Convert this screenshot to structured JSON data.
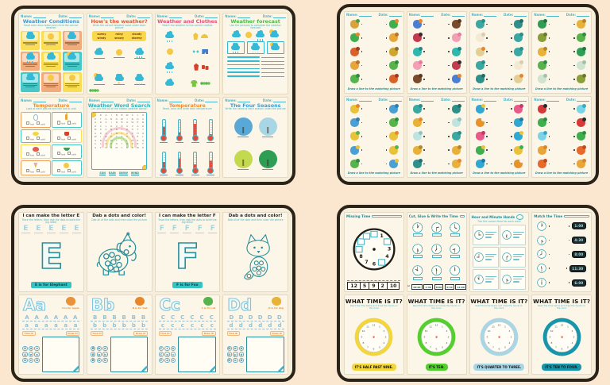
{
  "common": {
    "name_label": "Name:",
    "date_label": "Date:"
  },
  "weather_panel": {
    "conditions": {
      "title": "Weather Conditions",
      "subtitle": "Read each description and circle the correct weather",
      "cards": [
        {
          "bg": "#f9dd55",
          "icon": "cloud"
        },
        {
          "bg": "#f9dd55",
          "icon": "sun"
        },
        {
          "bg": "#f2ab7a",
          "icon": "cloud"
        },
        {
          "bg": "#f2ab7a",
          "icon": "rain"
        },
        {
          "bg": "#f9dd55",
          "icon": "cloud"
        },
        {
          "bg": "#49c8c8",
          "icon": "cloudsun"
        },
        {
          "bg": "#49c8c8",
          "icon": "cloud"
        },
        {
          "bg": "#f2ab7a",
          "icon": "sun"
        },
        {
          "bg": "#f9dd55",
          "icon": "sun"
        }
      ]
    },
    "hows": {
      "title": "How's the weather?",
      "subtitle": "Write the correct weather word under each picture",
      "word_bank": [
        "sunny",
        "rainy",
        "cloudy",
        "windy",
        "snowy",
        "stormy"
      ],
      "icons": [
        "cloud",
        "sun",
        "rain",
        "cloudsun",
        "storm",
        "snow"
      ]
    },
    "clothes": {
      "title": "Weather and Clothes",
      "subtitle": "Match the weather to the correct clothes",
      "weather_icons": [
        "rain",
        "sun",
        "rain",
        "cloud"
      ],
      "clothes_rows": [
        [
          "raincoat",
          "umbrella"
        ],
        [
          "goggles",
          "shorts"
        ],
        [
          "coat",
          "boots"
        ],
        [
          "jacket",
          "caterpillar"
        ]
      ]
    },
    "forecast": {
      "title": "Weather forecast",
      "subtitle": "Use the pictures to complete the weather forecast",
      "icons": [
        "cloud",
        "sun",
        "rain",
        "cloudsun"
      ],
      "box_icons": [
        "rain",
        "snow",
        "cloudsun"
      ],
      "line_count": 6
    },
    "temperature1": {
      "title": "Temperature",
      "subtitle": "Look at each picture and tick hot or cold",
      "options": [
        "hot",
        "cold"
      ],
      "cards": [
        {
          "border": "#f2a25c",
          "icon": "snowman"
        },
        {
          "border": "#49c8c8",
          "icon": "candle"
        },
        {
          "border": "#49c8c8",
          "icon": "lemon"
        },
        {
          "border": "#f9dd55",
          "icon": "mug"
        },
        {
          "border": "#f9dd55",
          "icon": "kettle"
        },
        {
          "border": "#49c8c8",
          "icon": "soup"
        },
        {
          "border": "#f2a25c",
          "icon": "icecream"
        },
        {
          "border": "#49c8c8",
          "icon": "sun"
        }
      ]
    },
    "wordsearch": {
      "title": "Weather Word Search",
      "subtitle": "Can you find all of the hidden weather words?",
      "grid_rows": [
        "SRAINBWCLO",
        "UTSNOWINDS",
        "ORAINBOWEN",
        "RCLOUDUVAD",
        "MSUNNYDHTY",
        "ARAINYOPHO",
        "WINDYSCXEL",
        "SNOWYTLMRQ",
        "CLOUDYOZBF",
        "STORMYUNWE"
      ],
      "words": [
        "SUN",
        "RAIN",
        "SNOW",
        "WIND"
      ]
    },
    "temperature2": {
      "title": "Temperature",
      "subtitle": "Read, color and write each temperature",
      "fills": [
        62,
        30,
        78,
        22,
        48,
        68,
        35,
        55
      ]
    },
    "seasons": {
      "title": "The Four Seasons",
      "subtitle": "Write the name of each season under the picture",
      "season_colors": [
        "#58a8d8",
        "#a9d6e5",
        "#c3d94e",
        "#2f9e55"
      ]
    }
  },
  "matching_panel": {
    "caption": "Draw a line to the matching picture",
    "sheets": [
      {
        "theme": "jungle-animals",
        "left": [
          [
            "#d9a23a",
            "#4f9e3f"
          ],
          [
            "#3fae4e",
            "#e8862a"
          ],
          [
            "#d8622a",
            "#a33a1e"
          ],
          [
            "#e8a53a",
            "#b8762a"
          ],
          [
            "#57b44c",
            "#2f8f3f"
          ]
        ],
        "right": [
          [
            "#3fae4e",
            "#e8862a"
          ],
          [
            "#e8a53a",
            "#b8762a"
          ],
          [
            "#cfa52f",
            "#8a6d3a"
          ],
          [
            "#57b44c",
            "#2f8f3f"
          ],
          [
            "#d8622a",
            "#a33a1e"
          ]
        ]
      },
      {
        "theme": "butterflies",
        "left": [
          [
            "#4a7fd4",
            "#e8862a"
          ],
          [
            "#c43a4e",
            "#3a2a2a"
          ],
          [
            "#2fb6ad",
            "#1f8a86"
          ],
          [
            "#f2a0b5",
            "#e87a9a"
          ],
          [
            "#7a4a2a",
            "#5a3a1e"
          ]
        ],
        "right": [
          [
            "#7a4a2a",
            "#5a3a1e"
          ],
          [
            "#f2a0b5",
            "#e87a9a"
          ],
          [
            "#2fb6ad",
            "#1f8a86"
          ],
          [
            "#c43a4e",
            "#3a2a2a"
          ],
          [
            "#4a7fd4",
            "#e8862a"
          ]
        ]
      },
      {
        "theme": "bunnies",
        "left": [
          [
            "#3aa9a4",
            "#2a8f8a"
          ],
          [
            "#f3ead6",
            "#d8cdb2"
          ],
          [
            "#e3cf96",
            "#e8862a"
          ],
          [
            "#3aa9a4",
            "#2a8f8a"
          ],
          [
            "#2f8f8a",
            "#1f6f6a"
          ]
        ],
        "right": [
          [
            "#2f8f8a",
            "#1f6f6a"
          ],
          [
            "#3aa9a4",
            "#2a8f8a"
          ],
          [
            "#3aa9a4",
            "#2a8f8a"
          ],
          [
            "#f3ead6",
            "#d8cdb2"
          ],
          [
            "#e3cf96",
            "#e8862a"
          ]
        ]
      },
      {
        "theme": "farm-animals",
        "left": [
          [
            "#2f9e55",
            "#1f7a3f"
          ],
          [
            "#8a9e3a",
            "#6a7a2a"
          ],
          [
            "#e8b13a",
            "#b8862a"
          ],
          [
            "#57b44c",
            "#2f8f3f"
          ],
          [
            "#cfe3d0",
            "#9fc4a8"
          ]
        ],
        "right": [
          [
            "#e8b13a",
            "#b8862a"
          ],
          [
            "#57b44c",
            "#2f8f3f"
          ],
          [
            "#2f9e55",
            "#1f7a3f"
          ],
          [
            "#cfe3d0",
            "#9fc4a8"
          ],
          [
            "#8a9e3a",
            "#6a7a2a"
          ]
        ]
      },
      {
        "theme": "birds",
        "left": [
          [
            "#e8c23a",
            "#e8862a"
          ],
          [
            "#4a9fd4",
            "#2a7fb4"
          ],
          [
            "#e8c23a",
            "#57b44c"
          ],
          [
            "#4a9fd4",
            "#e8c23a"
          ],
          [
            "#57b44c",
            "#2f8f3f"
          ]
        ],
        "right": [
          [
            "#4a9fd4",
            "#2a7fb4"
          ],
          [
            "#57b44c",
            "#2f8f3f"
          ],
          [
            "#e8c23a",
            "#e8862a"
          ],
          [
            "#e8c23a",
            "#57b44c"
          ],
          [
            "#4a9fd4",
            "#e8c23a"
          ]
        ]
      },
      {
        "theme": "cats",
        "left": [
          [
            "#3aa9a4",
            "#2a8f8a"
          ],
          [
            "#e8b13a",
            "#e8862a"
          ],
          [
            "#bfe3e0",
            "#8fc4c0"
          ],
          [
            "#e8b13a",
            "#b8862a"
          ],
          [
            "#2f8f8a",
            "#1f6f6a"
          ]
        ],
        "right": [
          [
            "#2f8f8a",
            "#1f6f6a"
          ],
          [
            "#bfe3e0",
            "#8fc4c0"
          ],
          [
            "#3aa9a4",
            "#2a8f8a"
          ],
          [
            "#e8b13a",
            "#b8862a"
          ],
          [
            "#e8b13a",
            "#e8862a"
          ]
        ]
      },
      {
        "theme": "fish",
        "left": [
          [
            "#2fa8d4",
            "#e8c23a"
          ],
          [
            "#e8922a",
            "#fdf6e8"
          ],
          [
            "#e85a8a",
            "#c43a6a"
          ],
          [
            "#3fae4e",
            "#e8c23a"
          ],
          [
            "#2fa8d4",
            "#1f7aa4"
          ]
        ],
        "right": [
          [
            "#e85a8a",
            "#c43a6a"
          ],
          [
            "#2fa8d4",
            "#1f7aa4"
          ],
          [
            "#2fa8d4",
            "#e8c23a"
          ],
          [
            "#e8c23a",
            "#3fae4e"
          ],
          [
            "#e8922a",
            "#fdf6e8"
          ]
        ]
      },
      {
        "theme": "bugs",
        "left": [
          [
            "#d43a3a",
            "#2a2a2a"
          ],
          [
            "#3fae4e",
            "#2f8f3f"
          ],
          [
            "#7ad4e8",
            "#3aa9c4"
          ],
          [
            "#e8a53a",
            "#d8862a"
          ],
          [
            "#e86a2a",
            "#c44a1e"
          ]
        ],
        "right": [
          [
            "#7ad4e8",
            "#3aa9c4"
          ],
          [
            "#d43a3a",
            "#2a2a2a"
          ],
          [
            "#3fae4e",
            "#2f8f3f"
          ],
          [
            "#e86a2a",
            "#c44a1e"
          ],
          [
            "#e8a53a",
            "#d8862a"
          ]
        ]
      }
    ]
  },
  "letters_panel": {
    "make_e": {
      "title": "I can make the letter E",
      "subtitle": "Trace the letters, then dab the dots to build the big letter",
      "trace": [
        "E",
        "E",
        "E",
        "E",
        "E"
      ],
      "big_letter": "E",
      "caption": "E is for Elephant"
    },
    "dab_elephant": {
      "title": "Dab a dots and color!",
      "subtitle": "Dab all of the dots and then color the picture"
    },
    "make_f": {
      "title": "I can make the letter F",
      "subtitle": "Trace the letters, then dab the dots to build the big letter",
      "trace": [
        "F",
        "F",
        "F",
        "F",
        "F"
      ],
      "big_letter": "F",
      "caption": "F is for Fox"
    },
    "dab_fox": {
      "title": "Dab a dots and color!",
      "subtitle": "Dab all of the dots and then color the picture"
    },
    "abc_sheets": [
      {
        "display": "Aa",
        "caption": "A is for apple",
        "icon_color": "#e8923a",
        "trace_upper": [
          "A",
          "A",
          "A",
          "A",
          "A",
          "A"
        ],
        "trace_lower": [
          "a",
          "a",
          "a",
          "a",
          "a",
          "a"
        ],
        "trace_label": "Trace it!",
        "find_label": "Find it!",
        "draw_label": "Draw it!",
        "find_letters": [
          "A",
          "a",
          "o",
          "A",
          "e",
          "a",
          "A",
          "c",
          "A"
        ]
      },
      {
        "display": "Bb",
        "caption": "B is for ball",
        "icon_color": "#e8862a",
        "trace_upper": [
          "B",
          "B",
          "B",
          "B",
          "B",
          "B"
        ],
        "trace_lower": [
          "b",
          "b",
          "b",
          "b",
          "b",
          "b"
        ],
        "trace_label": "Trace it!",
        "find_label": "Find it!",
        "draw_label": "Draw it!",
        "find_letters": [
          "B",
          "b",
          "d",
          "B",
          "p",
          "b",
          "B",
          "a",
          "b"
        ]
      },
      {
        "display": "Cc",
        "caption": "C is for cat",
        "icon_color": "#57b44c",
        "trace_upper": [
          "C",
          "C",
          "C",
          "C",
          "C",
          "C"
        ],
        "trace_lower": [
          "c",
          "c",
          "c",
          "c",
          "c",
          "c"
        ],
        "trace_label": "Trace it!",
        "find_label": "Find it!",
        "draw_label": "Draw it!",
        "find_letters": [
          "C",
          "c",
          "e",
          "C",
          "o",
          "c",
          "C",
          "a",
          "c"
        ]
      },
      {
        "display": "Dd",
        "caption": "D is for dog",
        "icon_color": "#e8b13a",
        "trace_upper": [
          "D",
          "D",
          "D",
          "D",
          "D",
          "D"
        ],
        "trace_lower": [
          "d",
          "d",
          "d",
          "d",
          "d",
          "d"
        ],
        "trace_label": "Trace it!",
        "find_label": "Find it!",
        "draw_label": "Draw it!",
        "find_letters": [
          "D",
          "d",
          "b",
          "D",
          "p",
          "d",
          "D",
          "o",
          "d"
        ]
      }
    ]
  },
  "time_panel": {
    "missing": {
      "title": "Missing Time",
      "visible_numbers": [
        1,
        3,
        4,
        6,
        7,
        8
      ],
      "box_numbers": [
        2,
        5,
        9,
        10,
        11,
        12
      ],
      "tiles": [
        "12",
        "5",
        "9",
        "2",
        "10"
      ]
    },
    "cut_glue": {
      "title": "Cut, Glue & Write the Time",
      "clock_times": [
        "1:00",
        "2:30",
        "4:00",
        "5:30",
        "7:00",
        "8:30",
        "10:00",
        "11:30",
        "12:00"
      ],
      "answer_tiles": [
        "10:00",
        "1:30",
        "8:00",
        "5:30",
        "12:00"
      ],
      "scissors": "✂"
    },
    "hour_minute": {
      "title": "Hour and Minute Hands",
      "subtitle": "Tick the correct time for each clock",
      "cells": [
        {
          "time": "3:00"
        },
        {
          "time": "6:30"
        },
        {
          "time": "9:00"
        },
        {
          "time": "1:30"
        },
        {
          "time": "11:00"
        },
        {
          "time": "4:30"
        }
      ]
    },
    "match_time": {
      "title": "Match the Time",
      "rows": [
        {
          "time": "1:00"
        },
        {
          "time": "4:30"
        },
        {
          "time": "8:00"
        },
        {
          "time": "11:30"
        },
        {
          "time": "6:00"
        }
      ]
    },
    "what_time": {
      "title": "WHAT TIME IS IT?",
      "subtitle": "Read the time below and draw the hands on the clock",
      "sheets": [
        {
          "ring": "#f2d63c",
          "label": "IT'S HALF PAST NINE.",
          "label_bg": "#f2d63c"
        },
        {
          "ring": "#53cf2e",
          "label": "IT'S TEN.",
          "label_bg": "#53cf2e"
        },
        {
          "ring": "#a9d6e5",
          "label": "IT'S QUARTER TO THREE.",
          "label_bg": "#a9d6e5"
        },
        {
          "ring": "#1795aa",
          "label": "IT'S TEN TO FOUR.",
          "label_bg": "#1795aa"
        }
      ]
    }
  }
}
